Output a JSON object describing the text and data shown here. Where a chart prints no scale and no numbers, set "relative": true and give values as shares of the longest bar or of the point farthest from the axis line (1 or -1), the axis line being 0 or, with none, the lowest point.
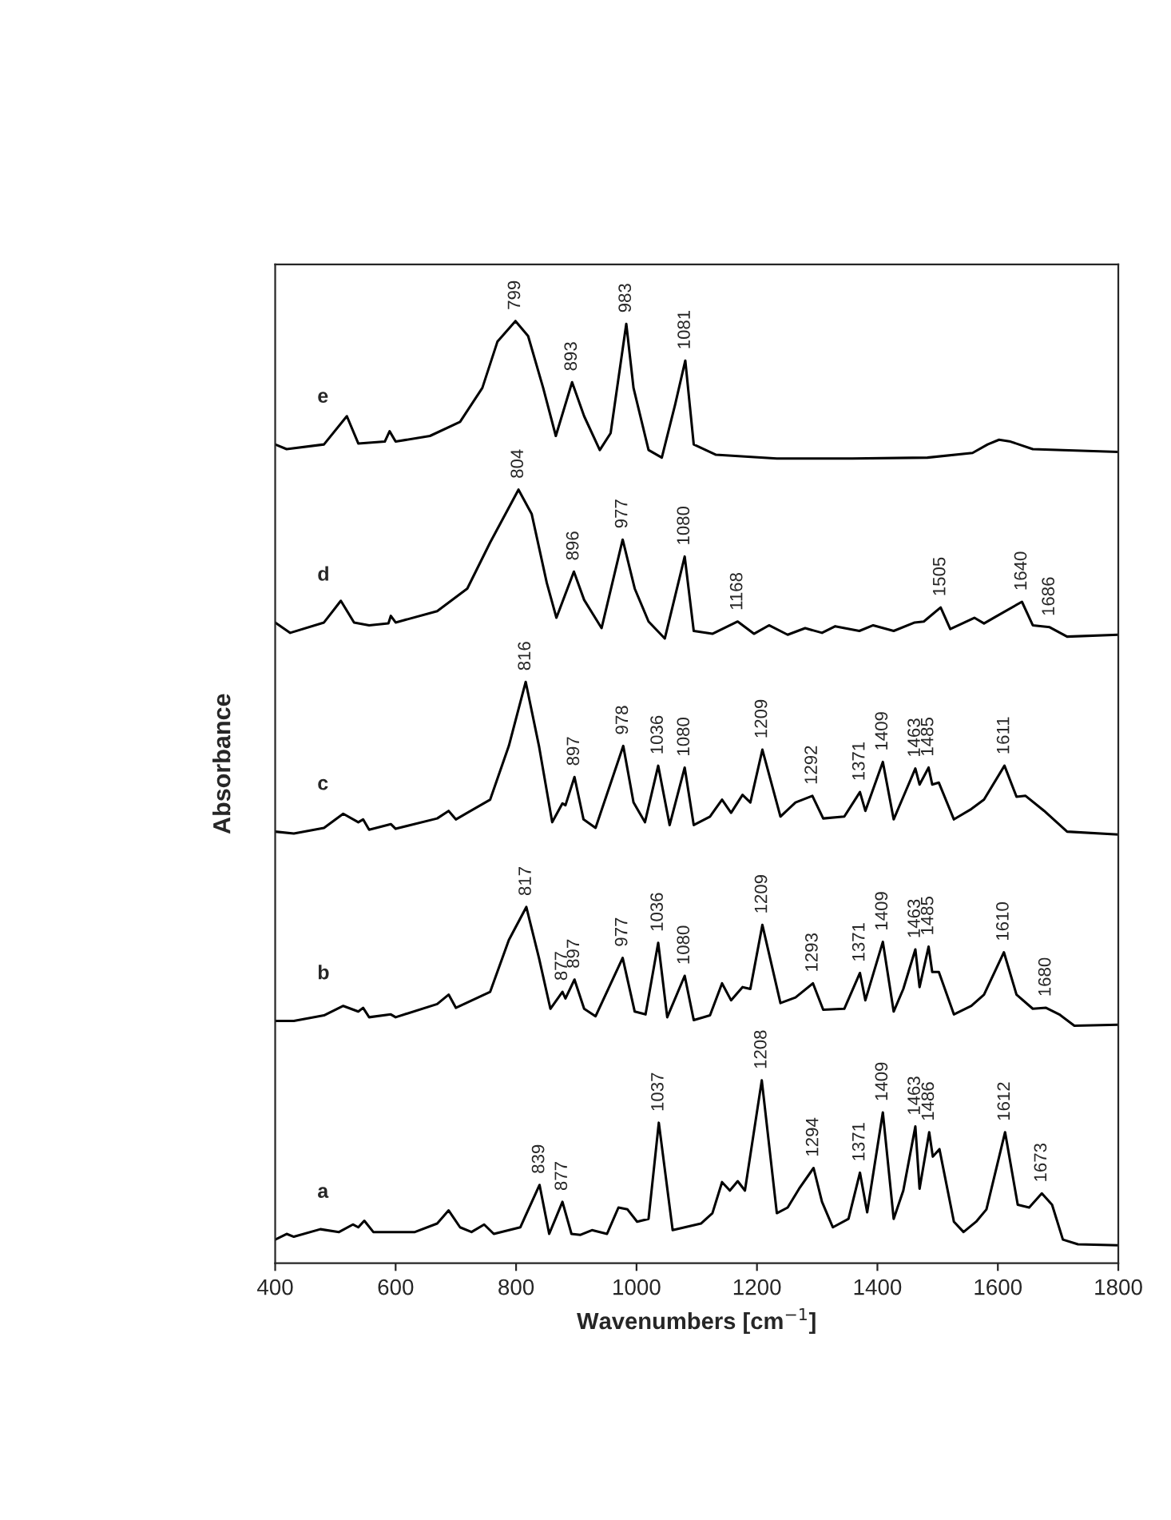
{
  "chart_data": {
    "type": "line",
    "relative": true,
    "xlabel": "Wavenumbers [cm$^{−1}$]",
    "ylabel": "Absorbance",
    "xlim": [
      400,
      1800
    ],
    "xticks": [
      400,
      600,
      800,
      1000,
      1200,
      1400,
      1600,
      1800
    ],
    "tick_labels": "x",
    "series": [
      {
        "name": "e",
        "color": "#000000",
        "x": [
          400,
          419,
          481,
          519,
          538,
          582,
          590,
          600,
          657,
          707,
          744,
          769,
          799,
          820,
          845,
          866,
          893,
          913,
          939,
          957,
          983,
          995,
          1020,
          1042,
          1064,
          1081,
          1095,
          1132,
          1233,
          1358,
          1483,
          1558,
          1583,
          1602,
          1621,
          1658,
          1708,
          1800
        ],
        "values": [
          0.869,
          0.864,
          0.869,
          0.899,
          0.87,
          0.872,
          0.883,
          0.872,
          0.878,
          0.893,
          0.929,
          0.978,
          1.0,
          0.984,
          0.929,
          0.878,
          0.935,
          0.899,
          0.863,
          0.881,
          0.997,
          0.929,
          0.863,
          0.855,
          0.911,
          0.958,
          0.869,
          0.858,
          0.854,
          0.854,
          0.855,
          0.86,
          0.869,
          0.874,
          0.872,
          0.864,
          0.863,
          0.861
        ]
      },
      {
        "name": "d",
        "color": "#000000",
        "x": [
          400,
          425,
          481,
          509,
          531,
          556,
          588,
          592,
          600,
          669,
          719,
          757,
          804,
          826,
          851,
          867,
          896,
          913,
          942,
          977,
          997,
          1020,
          1047,
          1080,
          1095,
          1126,
          1168,
          1195,
          1220,
          1251,
          1280,
          1308,
          1330,
          1370,
          1393,
          1427,
          1462,
          1477,
          1505,
          1521,
          1561,
          1577,
          1596,
          1640,
          1658,
          1686,
          1715,
          1800
        ],
        "values": [
          0.68,
          0.669,
          0.68,
          0.703,
          0.68,
          0.677,
          0.679,
          0.687,
          0.68,
          0.692,
          0.716,
          0.765,
          0.821,
          0.795,
          0.722,
          0.685,
          0.734,
          0.704,
          0.674,
          0.768,
          0.716,
          0.681,
          0.663,
          0.75,
          0.671,
          0.668,
          0.681,
          0.668,
          0.677,
          0.667,
          0.674,
          0.669,
          0.676,
          0.671,
          0.677,
          0.671,
          0.68,
          0.681,
          0.696,
          0.673,
          0.685,
          0.679,
          0.686,
          0.702,
          0.677,
          0.675,
          0.665,
          0.667
        ]
      },
      {
        "name": "c",
        "color": "#000000",
        "x": [
          400,
          431,
          481,
          513,
          538,
          546,
          556,
          592,
          600,
          669,
          688,
          700,
          757,
          788,
          816,
          838,
          860,
          877,
          882,
          897,
          912,
          932,
          978,
          995,
          1014,
          1036,
          1055,
          1080,
          1095,
          1122,
          1142,
          1157,
          1176,
          1189,
          1209,
          1239,
          1264,
          1292,
          1310,
          1345,
          1371,
          1380,
          1409,
          1427,
          1443,
          1463,
          1470,
          1485,
          1491,
          1502,
          1527,
          1556,
          1577,
          1611,
          1631,
          1646,
          1677,
          1715,
          1800
        ],
        "values": [
          0.458,
          0.456,
          0.462,
          0.477,
          0.468,
          0.471,
          0.46,
          0.466,
          0.461,
          0.472,
          0.48,
          0.471,
          0.492,
          0.549,
          0.617,
          0.549,
          0.468,
          0.488,
          0.486,
          0.516,
          0.471,
          0.462,
          0.549,
          0.489,
          0.468,
          0.528,
          0.465,
          0.526,
          0.465,
          0.474,
          0.492,
          0.478,
          0.497,
          0.489,
          0.545,
          0.474,
          0.489,
          0.496,
          0.472,
          0.474,
          0.5,
          0.48,
          0.532,
          0.471,
          0.495,
          0.525,
          0.508,
          0.526,
          0.508,
          0.51,
          0.471,
          0.482,
          0.492,
          0.528,
          0.495,
          0.496,
          0.48,
          0.458,
          0.455
        ]
      },
      {
        "name": "b",
        "color": "#000000",
        "x": [
          400,
          431,
          481,
          513,
          538,
          546,
          556,
          592,
          600,
          669,
          688,
          700,
          757,
          788,
          817,
          838,
          857,
          877,
          882,
          897,
          913,
          932,
          977,
          997,
          1015,
          1036,
          1051,
          1080,
          1095,
          1122,
          1142,
          1157,
          1176,
          1189,
          1209,
          1239,
          1264,
          1293,
          1310,
          1345,
          1371,
          1380,
          1409,
          1427,
          1443,
          1463,
          1470,
          1485,
          1491,
          1502,
          1527,
          1556,
          1577,
          1610,
          1631,
          1658,
          1680,
          1702,
          1727,
          1800
        ],
        "values": [
          0.257,
          0.257,
          0.263,
          0.273,
          0.267,
          0.271,
          0.261,
          0.264,
          0.261,
          0.275,
          0.285,
          0.271,
          0.288,
          0.343,
          0.378,
          0.324,
          0.27,
          0.288,
          0.281,
          0.301,
          0.27,
          0.262,
          0.324,
          0.267,
          0.264,
          0.34,
          0.261,
          0.305,
          0.258,
          0.263,
          0.297,
          0.279,
          0.293,
          0.291,
          0.359,
          0.276,
          0.282,
          0.297,
          0.269,
          0.27,
          0.308,
          0.279,
          0.341,
          0.267,
          0.291,
          0.333,
          0.293,
          0.336,
          0.309,
          0.309,
          0.264,
          0.273,
          0.285,
          0.33,
          0.285,
          0.27,
          0.271,
          0.264,
          0.252,
          0.253
        ]
      },
      {
        "name": "a",
        "color": "#000000",
        "x": [
          400,
          419,
          431,
          475,
          506,
          529,
          538,
          548,
          563,
          632,
          669,
          688,
          707,
          726,
          747,
          763,
          807,
          839,
          855,
          877,
          892,
          907,
          926,
          951,
          970,
          985,
          1001,
          1020,
          1037,
          1060,
          1107,
          1126,
          1142,
          1155,
          1168,
          1180,
          1208,
          1233,
          1251,
          1270,
          1294,
          1308,
          1326,
          1352,
          1371,
          1383,
          1409,
          1427,
          1443,
          1463,
          1470,
          1486,
          1492,
          1503,
          1527,
          1543,
          1564,
          1581,
          1612,
          1633,
          1652,
          1673,
          1690,
          1708,
          1733,
          1800
        ],
        "values": [
          0.025,
          0.031,
          0.028,
          0.036,
          0.033,
          0.041,
          0.038,
          0.045,
          0.033,
          0.033,
          0.042,
          0.056,
          0.038,
          0.033,
          0.041,
          0.031,
          0.038,
          0.083,
          0.031,
          0.065,
          0.031,
          0.03,
          0.035,
          0.031,
          0.059,
          0.057,
          0.044,
          0.047,
          0.149,
          0.035,
          0.042,
          0.053,
          0.086,
          0.077,
          0.087,
          0.077,
          0.194,
          0.053,
          0.059,
          0.079,
          0.101,
          0.065,
          0.038,
          0.047,
          0.096,
          0.054,
          0.16,
          0.047,
          0.077,
          0.145,
          0.079,
          0.139,
          0.113,
          0.121,
          0.044,
          0.033,
          0.044,
          0.057,
          0.139,
          0.062,
          0.059,
          0.074,
          0.062,
          0.025,
          0.02,
          0.019
        ]
      }
    ],
    "annotations": [
      {
        "text": "799",
        "x": 799,
        "y": 1.0
      },
      {
        "text": "893",
        "x": 893,
        "y": 0.935
      },
      {
        "text": "983",
        "x": 983,
        "y": 0.997
      },
      {
        "text": "1081",
        "x": 1081,
        "y": 0.958
      },
      {
        "text": "804",
        "x": 804,
        "y": 0.821
      },
      {
        "text": "896",
        "x": 896,
        "y": 0.734
      },
      {
        "text": "977",
        "x": 977,
        "y": 0.768
      },
      {
        "text": "1080",
        "x": 1080,
        "y": 0.75
      },
      {
        "text": "1168",
        "x": 1168,
        "y": 0.681
      },
      {
        "text": "1505",
        "x": 1505,
        "y": 0.696
      },
      {
        "text": "1640",
        "x": 1640,
        "y": 0.702
      },
      {
        "text": "1686",
        "x": 1686,
        "y": 0.675
      },
      {
        "text": "816",
        "x": 816,
        "y": 0.617
      },
      {
        "text": "897",
        "x": 897,
        "y": 0.516
      },
      {
        "text": "978",
        "x": 978,
        "y": 0.549
      },
      {
        "text": "1036",
        "x": 1036,
        "y": 0.528
      },
      {
        "text": "1080",
        "x": 1080,
        "y": 0.526
      },
      {
        "text": "1209",
        "x": 1209,
        "y": 0.545
      },
      {
        "text": "1292",
        "x": 1292,
        "y": 0.496
      },
      {
        "text": "1371",
        "x": 1371,
        "y": 0.5
      },
      {
        "text": "1409",
        "x": 1409,
        "y": 0.532
      },
      {
        "text": "1463",
        "x": 1463,
        "y": 0.525
      },
      {
        "text": "1485",
        "x": 1485,
        "y": 0.526
      },
      {
        "text": "1611",
        "x": 1611,
        "y": 0.528
      },
      {
        "text": "817",
        "x": 817,
        "y": 0.378
      },
      {
        "text": "877",
        "x": 877,
        "y": 0.288
      },
      {
        "text": "897",
        "x": 897,
        "y": 0.301
      },
      {
        "text": "977",
        "x": 977,
        "y": 0.324
      },
      {
        "text": "1036",
        "x": 1036,
        "y": 0.34
      },
      {
        "text": "1080",
        "x": 1080,
        "y": 0.305
      },
      {
        "text": "1209",
        "x": 1209,
        "y": 0.359
      },
      {
        "text": "1293",
        "x": 1293,
        "y": 0.297
      },
      {
        "text": "1371",
        "x": 1371,
        "y": 0.308
      },
      {
        "text": "1409",
        "x": 1409,
        "y": 0.341
      },
      {
        "text": "1463",
        "x": 1463,
        "y": 0.333
      },
      {
        "text": "1485",
        "x": 1485,
        "y": 0.336
      },
      {
        "text": "1610",
        "x": 1610,
        "y": 0.33
      },
      {
        "text": "1680",
        "x": 1680,
        "y": 0.271
      },
      {
        "text": "839",
        "x": 839,
        "y": 0.083
      },
      {
        "text": "877",
        "x": 877,
        "y": 0.065
      },
      {
        "text": "1037",
        "x": 1037,
        "y": 0.149
      },
      {
        "text": "1208",
        "x": 1208,
        "y": 0.194
      },
      {
        "text": "1294",
        "x": 1294,
        "y": 0.101
      },
      {
        "text": "1371",
        "x": 1371,
        "y": 0.096
      },
      {
        "text": "1409",
        "x": 1409,
        "y": 0.16
      },
      {
        "text": "1463",
        "x": 1463,
        "y": 0.145
      },
      {
        "text": "1486",
        "x": 1486,
        "y": 0.139
      },
      {
        "text": "1612",
        "x": 1612,
        "y": 0.139
      },
      {
        "text": "1673",
        "x": 1673,
        "y": 0.074
      }
    ]
  }
}
